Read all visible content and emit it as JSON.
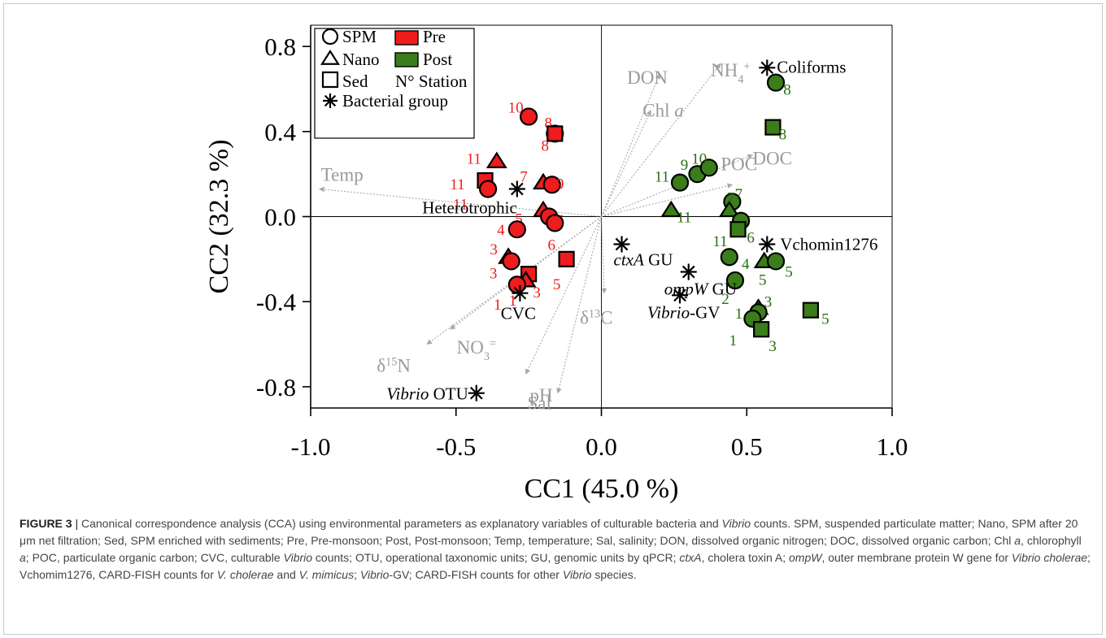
{
  "chart_data": {
    "type": "scatter",
    "title": "",
    "xlabel": "CC1 (45.0 %)",
    "ylabel": "CC2 (32.3 %)",
    "xlim": [
      -1.0,
      1.0
    ],
    "ylim": [
      -0.9,
      0.9
    ],
    "xticks": [
      -1.0,
      -0.5,
      0.0,
      0.5,
      1.0
    ],
    "xtick_labels": [
      "-1.0",
      "-0.5",
      "0.0",
      "0.5",
      "1.0"
    ],
    "yticks": [
      -0.8,
      -0.4,
      0.0,
      0.4,
      0.8
    ],
    "ytick_labels": [
      "-0.8",
      "-0.4",
      "0.0",
      "0.4",
      "0.8"
    ],
    "grid": false,
    "zero_lines": true,
    "legend_position": "top-left",
    "legend": [
      {
        "symbol": "circle",
        "label": "SPM"
      },
      {
        "symbol": "triangle",
        "label": "Nano"
      },
      {
        "symbol": "square",
        "label": "Sed"
      },
      {
        "symbol": "asterisk",
        "label": "Bacterial group"
      },
      {
        "symbol": "swatch",
        "color": "#ee1c1c",
        "label": "Pre"
      },
      {
        "symbol": "swatch",
        "color": "#3a7d1a",
        "label": "Post"
      },
      {
        "symbol": "text",
        "label": "N° Station"
      }
    ],
    "colors": {
      "pre": "#ee1c1c",
      "post": "#3a7d1a",
      "vector": "#a8a8a8",
      "axis": "#000000"
    },
    "vectors": [
      {
        "name": "Temp",
        "x": -0.97,
        "y": 0.13
      },
      {
        "name": "DON",
        "x": 0.2,
        "y": 0.67
      },
      {
        "name": "NH4+",
        "x": 0.41,
        "y": 0.72
      },
      {
        "name": "Chl a",
        "x": 0.17,
        "y": 0.5
      },
      {
        "name": "DOC",
        "x": 0.52,
        "y": 0.29
      },
      {
        "name": "POC",
        "x": 0.45,
        "y": 0.15
      },
      {
        "name": "δ13C",
        "x": 0.01,
        "y": -0.36
      },
      {
        "name": "δ15N",
        "x": -0.6,
        "y": -0.6
      },
      {
        "name": "NO3=",
        "x": -0.52,
        "y": -0.53
      },
      {
        "name": "pH",
        "x": -0.26,
        "y": -0.74
      },
      {
        "name": "Sal",
        "x": -0.15,
        "y": -0.83
      }
    ],
    "bacterial_groups": [
      {
        "name": "Coliforms",
        "x": 0.57,
        "y": 0.7
      },
      {
        "name": "Heterotrophic",
        "x": -0.29,
        "y": 0.13
      },
      {
        "name": "Vchomin1276",
        "x": 0.57,
        "y": -0.13
      },
      {
        "name": "ctxA GU",
        "x": 0.07,
        "y": -0.13
      },
      {
        "name": "ompW GU",
        "x": 0.3,
        "y": -0.26
      },
      {
        "name": "Vibrio-GV",
        "x": 0.27,
        "y": -0.37
      },
      {
        "name": "CVC",
        "x": -0.28,
        "y": -0.36
      },
      {
        "name": "Vibrio OTU",
        "x": -0.43,
        "y": -0.83
      }
    ],
    "series": [
      {
        "name": "Pre",
        "points": [
          {
            "shape": "circle",
            "station": "10",
            "x": -0.25,
            "y": 0.47
          },
          {
            "shape": "circle",
            "station": "8",
            "x": -0.16,
            "y": 0.39
          },
          {
            "shape": "square",
            "station": "8",
            "x": -0.16,
            "y": 0.39
          },
          {
            "shape": "triangle",
            "station": "11",
            "x": -0.36,
            "y": 0.26
          },
          {
            "shape": "square",
            "station": "11",
            "x": -0.4,
            "y": 0.17
          },
          {
            "shape": "circle",
            "station": "11",
            "x": -0.39,
            "y": 0.13
          },
          {
            "shape": "triangle",
            "station": "7",
            "x": -0.2,
            "y": 0.16
          },
          {
            "shape": "circle",
            "station": "9",
            "x": -0.17,
            "y": 0.15
          },
          {
            "shape": "triangle",
            "station": "5",
            "x": -0.2,
            "y": 0.03
          },
          {
            "shape": "circle",
            "station": "5",
            "x": -0.18,
            "y": 0.0
          },
          {
            "shape": "circle",
            "station": "6",
            "x": -0.16,
            "y": -0.03
          },
          {
            "shape": "circle",
            "station": "4",
            "x": -0.29,
            "y": -0.06
          },
          {
            "shape": "triangle",
            "station": "3",
            "x": -0.32,
            "y": -0.19
          },
          {
            "shape": "circle",
            "station": "3",
            "x": -0.31,
            "y": -0.21
          },
          {
            "shape": "square",
            "station": "3",
            "x": -0.25,
            "y": -0.27
          },
          {
            "shape": "triangle",
            "station": "1",
            "x": -0.26,
            "y": -0.3
          },
          {
            "shape": "circle",
            "station": "1",
            "x": -0.29,
            "y": -0.32
          },
          {
            "shape": "square",
            "station": "5",
            "x": -0.12,
            "y": -0.2
          }
        ]
      },
      {
        "name": "Post",
        "points": [
          {
            "shape": "circle",
            "station": "8",
            "x": 0.6,
            "y": 0.63
          },
          {
            "shape": "square",
            "station": "8",
            "x": 0.59,
            "y": 0.42
          },
          {
            "shape": "circle",
            "station": "11",
            "x": 0.27,
            "y": 0.16
          },
          {
            "shape": "circle",
            "station": "9",
            "x": 0.33,
            "y": 0.2
          },
          {
            "shape": "circle",
            "station": "10",
            "x": 0.37,
            "y": 0.23
          },
          {
            "shape": "circle",
            "station": "7",
            "x": 0.45,
            "y": 0.07
          },
          {
            "shape": "triangle",
            "station": "11",
            "x": 0.24,
            "y": 0.03
          },
          {
            "shape": "triangle",
            "station": "7",
            "x": 0.44,
            "y": 0.03
          },
          {
            "shape": "circle",
            "station": "6",
            "x": 0.48,
            "y": -0.02
          },
          {
            "shape": "square",
            "station": "11",
            "x": 0.47,
            "y": -0.06
          },
          {
            "shape": "circle",
            "station": "4",
            "x": 0.44,
            "y": -0.19
          },
          {
            "shape": "triangle",
            "station": "5",
            "x": 0.56,
            "y": -0.21
          },
          {
            "shape": "circle",
            "station": "5",
            "x": 0.6,
            "y": -0.21
          },
          {
            "shape": "circle",
            "station": "2",
            "x": 0.46,
            "y": -0.3
          },
          {
            "shape": "triangle",
            "station": "1",
            "x": 0.54,
            "y": -0.43
          },
          {
            "shape": "circle",
            "station": "3",
            "x": 0.54,
            "y": -0.45
          },
          {
            "shape": "circle",
            "station": "1",
            "x": 0.52,
            "y": -0.48
          },
          {
            "shape": "square",
            "station": "3",
            "x": 0.55,
            "y": -0.53
          },
          {
            "shape": "square",
            "station": "5",
            "x": 0.72,
            "y": -0.44
          }
        ]
      }
    ]
  },
  "caption": {
    "label": "FIGURE 3",
    "separator": " | ",
    "part01": "Canonical correspondence analysis (CCA) using environmental parameters as explanatory variables of culturable bacteria and ",
    "part02": "Vibrio",
    "part03": " counts. SPM, suspended particulate matter; Nano, SPM after 20 μm net filtration; Sed, SPM enriched with sediments; Pre, Pre-monsoon; Post, Post-monsoon; Temp, temperature; Sal, salinity; DON, dissolved organic nitrogen; DOC, dissolved organic carbon; Chl ",
    "part04": "a",
    "part05": ", chlorophyll ",
    "part06": "a",
    "part07": "; POC, particulate organic carbon; CVC, culturable ",
    "part08": "Vibrio",
    "part09": " counts; OTU, operational taxonomic units; GU, genomic units by qPCR; ",
    "part10": "ctxA",
    "part11": ", cholera toxin A; ",
    "part12": "ompW",
    "part13": ", outer membrane protein W gene for ",
    "part14": "Vibrio cholerae",
    "part15": "; Vchomim1276, CARD-FISH counts for ",
    "part16": "V. cholerae",
    "part17": " and ",
    "part18": "V. mimicus",
    "part19": "; ",
    "part20": "Vibrio",
    "part21": "-GV; CARD-FISH counts for other ",
    "part22": "Vibrio",
    "part23": " species."
  }
}
